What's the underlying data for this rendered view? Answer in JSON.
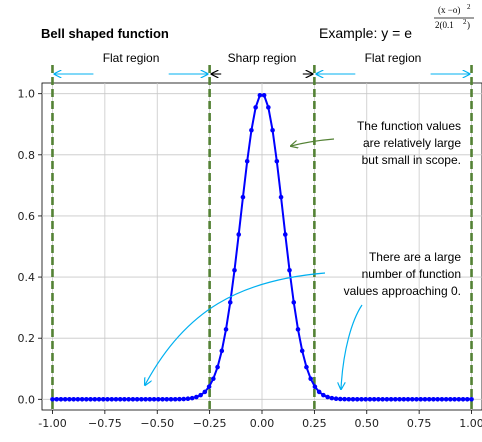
{
  "chart_data": {
    "type": "line",
    "title": "Bell shaped function",
    "formula": {
      "label": "Example: y = e",
      "numerator": "(x −o)",
      "num_exp": "2",
      "denominator": "2(0.1",
      "den_exp": "2",
      "den_close": ")"
    },
    "xlim": [
      -1.05,
      1.05
    ],
    "ylim": [
      -0.035,
      1.035
    ],
    "xticks": [
      -1.0,
      -0.75,
      -0.5,
      -0.25,
      0.0,
      0.25,
      0.5,
      0.75,
      1.0
    ],
    "xtick_labels": [
      "-1.00",
      "−0.75",
      "−0.50",
      "−0.25",
      "0.00",
      "0.25",
      "0.50",
      "0.75",
      "1.00"
    ],
    "yticks": [
      0.0,
      0.2,
      0.4,
      0.6,
      0.8,
      1.0
    ],
    "ytick_labels": [
      "0.0",
      "0.2",
      "0.4",
      "0.6",
      "0.8",
      "1.0"
    ],
    "grid": true,
    "series": [
      {
        "function": "exp(-(x-0)^2 / (2*0.1^2))",
        "x_range": [
          -1.0,
          1.0
        ],
        "num_points": 100,
        "color": "#0000ff"
      }
    ],
    "dashed_lines": {
      "x": [
        -1.0,
        -0.25,
        0.25,
        1.0
      ],
      "color": "#548235"
    },
    "regions": [
      {
        "label": "Flat region",
        "from": -1.0,
        "to": -0.25,
        "color": "#00b0f0"
      },
      {
        "label": "Sharp region",
        "from": -0.25,
        "to": 0.25,
        "color": "#000000"
      },
      {
        "label": "Flat region",
        "from": 0.25,
        "to": 1.0,
        "color": "#00b0f0"
      }
    ],
    "annotations": [
      {
        "lines": [
          "The function values",
          "are relatively large",
          "but small in scope."
        ],
        "arrow_color": "#548235"
      },
      {
        "lines": [
          "There are a large",
          "number of function",
          "values approaching 0."
        ],
        "arrow_color": "#00b0f0"
      }
    ]
  }
}
